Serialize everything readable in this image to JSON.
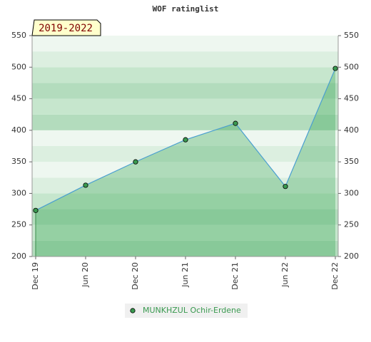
{
  "chart_data": {
    "type": "line",
    "title": "WOF ratinglist",
    "badge": "2019-2022",
    "categories": [
      "Dec 19",
      "Jun 20",
      "Dec 20",
      "Jun 21",
      "Dec 21",
      "Jun 22",
      "Dec 22"
    ],
    "series": [
      {
        "name": "MUNKHZUL Ochir-Erdene",
        "color": "#4a9fd0",
        "values": [
          273,
          313,
          350,
          385,
          411,
          311,
          498
        ]
      }
    ],
    "ylim": [
      200,
      550
    ],
    "yticks": [
      200,
      250,
      300,
      350,
      400,
      450,
      500,
      550
    ],
    "y2lim": [
      200,
      550
    ],
    "y2ticks": [
      200,
      250,
      300,
      350,
      400,
      450,
      500,
      550
    ],
    "grid": true
  }
}
